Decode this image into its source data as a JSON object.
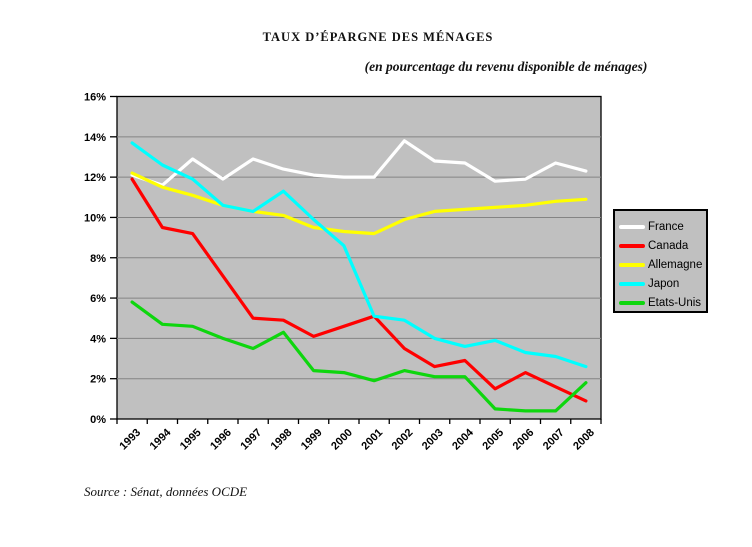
{
  "title": "TAUX D’ÉPARGNE DES MÉNAGES",
  "subtitle": "(en pourcentage du revenu disponible de ménages)",
  "source": "Source : Sénat, données OCDE",
  "chart_data": {
    "type": "line",
    "x": [
      "1993",
      "1994",
      "1995",
      "1996",
      "1997",
      "1998",
      "1999",
      "2000",
      "2001",
      "2002",
      "2003",
      "2004",
      "2005",
      "2006",
      "2007",
      "2008"
    ],
    "y_ticks": [
      "0%",
      "2%",
      "4%",
      "6%",
      "8%",
      "10%",
      "12%",
      "14%",
      "16%"
    ],
    "y_tick_step": 2,
    "ylim": [
      0,
      16
    ],
    "xlabel": "",
    "ylabel": "",
    "grid": true,
    "legend_position": "right",
    "plot_bg": "#C0C0C0",
    "grid_color": "#848484",
    "axis_color": "#000000",
    "series": [
      {
        "name": "France",
        "color": "#FFFFFF",
        "values": [
          12.1,
          11.6,
          12.9,
          11.9,
          12.9,
          12.4,
          12.1,
          12.0,
          12.0,
          13.8,
          12.8,
          12.7,
          11.8,
          11.9,
          12.7,
          12.3
        ]
      },
      {
        "name": "Canada",
        "color": "#FF0000",
        "values": [
          11.9,
          9.5,
          9.2,
          7.1,
          5.0,
          4.9,
          4.1,
          4.6,
          5.1,
          3.5,
          2.6,
          2.9,
          1.5,
          2.3,
          1.6,
          0.9
        ]
      },
      {
        "name": "Allemagne",
        "color": "#FFFF00",
        "values": [
          12.2,
          11.5,
          11.1,
          10.6,
          10.3,
          10.1,
          9.5,
          9.3,
          9.2,
          9.9,
          10.3,
          10.4,
          10.5,
          10.6,
          10.8,
          10.9
        ]
      },
      {
        "name": "Japon",
        "color": "#00FFFF",
        "values": [
          13.7,
          12.6,
          11.9,
          10.6,
          10.3,
          11.3,
          9.9,
          8.6,
          5.1,
          4.9,
          4.0,
          3.6,
          3.9,
          3.3,
          3.1,
          2.6
        ]
      },
      {
        "name": "Etats-Unis",
        "color": "#0ED60E",
        "values": [
          5.8,
          4.7,
          4.6,
          4.0,
          3.5,
          4.3,
          2.4,
          2.3,
          1.9,
          2.4,
          2.1,
          2.1,
          0.5,
          0.4,
          0.4,
          1.8
        ]
      }
    ]
  }
}
